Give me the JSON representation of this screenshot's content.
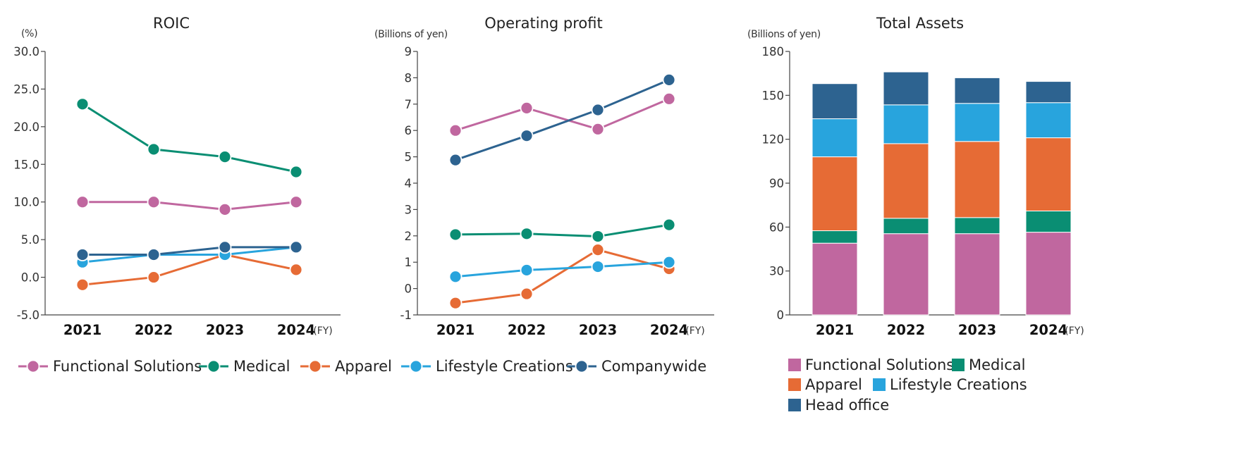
{
  "colors": {
    "functional_solutions": "#c0679f",
    "medical": "#0a8e73",
    "apparel": "#e66b35",
    "lifestyle_creations": "#28a4dd",
    "companywide": "#2d6390",
    "head_office": "#2d6390"
  },
  "chart_data": [
    {
      "id": "roic",
      "type": "line",
      "title": "ROIC",
      "unit_label": "(%)",
      "x": [
        "2021",
        "2022",
        "2023",
        "2024"
      ],
      "x_suffix": "(FY)",
      "ylim": [
        -5,
        30
      ],
      "yticks": [
        "30.0",
        "25.0",
        "20.0",
        "15.0",
        "10.0",
        "5.0",
        "0.0",
        "-5.0"
      ],
      "ytick_values": [
        30,
        25,
        20,
        15,
        10,
        5,
        0,
        -5
      ],
      "series": [
        {
          "name": "Functional Solutions",
          "key": "functional_solutions",
          "values": [
            10,
            10,
            9,
            10
          ]
        },
        {
          "name": "Medical",
          "key": "medical",
          "values": [
            23,
            17,
            16,
            14
          ]
        },
        {
          "name": "Apparel",
          "key": "apparel",
          "values": [
            -1,
            0,
            3,
            1
          ]
        },
        {
          "name": "Lifestyle Creations",
          "key": "lifestyle_creations",
          "values": [
            2,
            3,
            3,
            4
          ]
        },
        {
          "name": "Companywide",
          "key": "companywide",
          "values": [
            3,
            3,
            4,
            4
          ]
        }
      ]
    },
    {
      "id": "operating_profit",
      "type": "line",
      "title": "Operating profit",
      "unit_label": "(Billions of yen)",
      "x": [
        "2021",
        "2022",
        "2023",
        "2024"
      ],
      "x_suffix": "(FY)",
      "ylim": [
        -1,
        9
      ],
      "yticks": [
        "9",
        "8",
        "7",
        "6",
        "5",
        "4",
        "3",
        "2",
        "1",
        "0",
        "-1"
      ],
      "ytick_values": [
        9,
        8,
        7,
        6,
        5,
        4,
        3,
        2,
        1,
        0,
        -1
      ],
      "series": [
        {
          "name": "Functional Solutions",
          "key": "functional_solutions",
          "values": [
            6.0,
            6.85,
            6.05,
            7.2
          ]
        },
        {
          "name": "Medical",
          "key": "medical",
          "values": [
            2.05,
            2.08,
            1.98,
            2.42
          ]
        },
        {
          "name": "Apparel",
          "key": "apparel",
          "values": [
            -0.55,
            -0.2,
            1.47,
            0.75
          ]
        },
        {
          "name": "Lifestyle Creations",
          "key": "lifestyle_creations",
          "values": [
            0.45,
            0.7,
            0.83,
            1.0
          ]
        },
        {
          "name": "Companywide",
          "key": "companywide",
          "values": [
            4.88,
            5.8,
            6.78,
            7.92
          ]
        }
      ]
    },
    {
      "id": "total_assets",
      "type": "bar",
      "stacked": true,
      "title": "Total Assets",
      "unit_label": "(Billions of yen)",
      "categories": [
        "2021",
        "2022",
        "2023",
        "2024"
      ],
      "x_suffix": "(FY)",
      "ylim": [
        0,
        180
      ],
      "yticks": [
        "180",
        "150",
        "120",
        "90",
        "60",
        "30",
        "0"
      ],
      "ytick_values": [
        180,
        150,
        120,
        90,
        60,
        30,
        0
      ],
      "series": [
        {
          "name": "Functional Solutions",
          "key": "functional_solutions",
          "values": [
            49,
            55.5,
            55.5,
            56.5
          ]
        },
        {
          "name": "Medical",
          "key": "medical",
          "values": [
            8.5,
            10.5,
            11,
            14.5
          ]
        },
        {
          "name": "Apparel",
          "key": "apparel",
          "values": [
            50.5,
            51,
            52,
            50
          ]
        },
        {
          "name": "Lifestyle Creations",
          "key": "lifestyle_creations",
          "values": [
            26,
            26.5,
            26,
            24
          ]
        },
        {
          "name": "Head office",
          "key": "head_office",
          "values": [
            24,
            22.5,
            17.5,
            14.5
          ]
        }
      ]
    }
  ],
  "line_legend": [
    {
      "label": "Functional Solutions",
      "key": "functional_solutions"
    },
    {
      "label": "Medical",
      "key": "medical"
    },
    {
      "label": "Apparel",
      "key": "apparel"
    },
    {
      "label": "Lifestyle Creations",
      "key": "lifestyle_creations"
    },
    {
      "label": "Companywide",
      "key": "companywide"
    }
  ],
  "bar_legend": [
    {
      "label": "Functional Solutions",
      "key": "functional_solutions"
    },
    {
      "label": "Medical",
      "key": "medical"
    },
    {
      "label": "Apparel",
      "key": "apparel"
    },
    {
      "label": "Lifestyle Creations",
      "key": "lifestyle_creations"
    },
    {
      "label": "Head office",
      "key": "head_office"
    }
  ]
}
